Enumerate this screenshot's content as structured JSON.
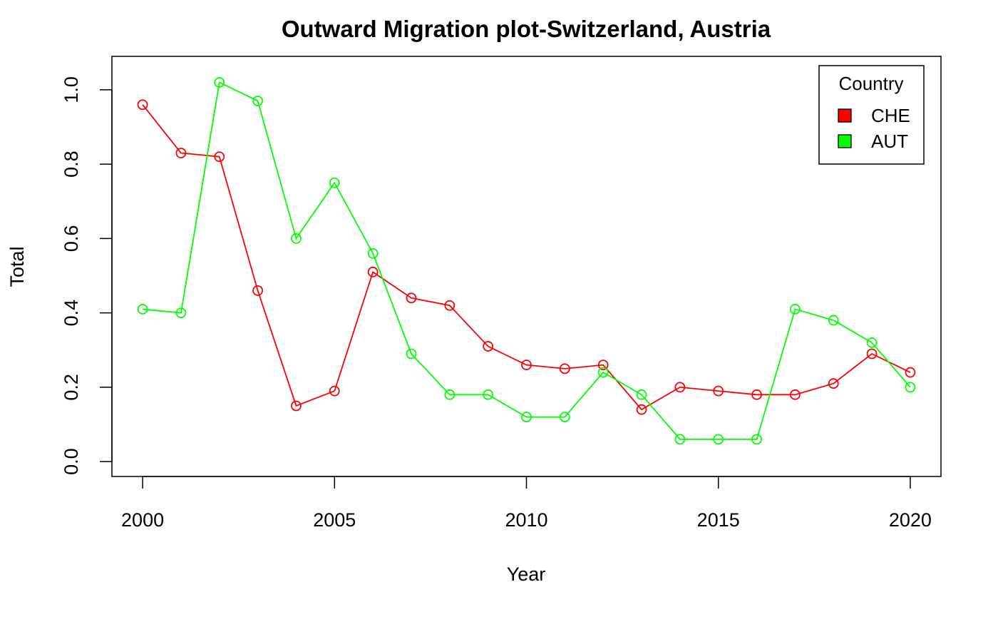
{
  "chart_data": {
    "type": "line",
    "title": "Outward Migration plot-Switzerland, Austria",
    "xlabel": "Year",
    "ylabel": "Total",
    "xlim": [
      1999.2,
      2020.8
    ],
    "ylim": [
      -0.04,
      1.09
    ],
    "x_ticks": [
      2000,
      2005,
      2010,
      2015,
      2020
    ],
    "y_ticks": [
      0.0,
      0.2,
      0.4,
      0.6,
      0.8,
      1.0
    ],
    "x_tick_labels": [
      "2000",
      "2005",
      "2010",
      "2015",
      "2020"
    ],
    "y_tick_labels": [
      "0.0",
      "0.2",
      "0.4",
      "0.6",
      "0.8",
      "1.0"
    ],
    "grid": false,
    "legend": {
      "position": "top-right",
      "title": "Country"
    },
    "x": [
      2000,
      2001,
      2002,
      2003,
      2004,
      2005,
      2006,
      2007,
      2008,
      2009,
      2010,
      2011,
      2012,
      2013,
      2014,
      2015,
      2016,
      2017,
      2018,
      2019,
      2020
    ],
    "series": [
      {
        "name": "CHE",
        "color": "#ff0000",
        "values": [
          0.96,
          0.83,
          0.82,
          0.46,
          0.15,
          0.19,
          0.51,
          0.44,
          0.42,
          0.31,
          0.26,
          0.25,
          0.26,
          0.14,
          0.2,
          0.19,
          0.18,
          0.18,
          0.21,
          0.29,
          0.24
        ]
      },
      {
        "name": "AUT",
        "color": "#00ff00",
        "values": [
          0.41,
          0.4,
          1.02,
          0.97,
          0.6,
          0.75,
          0.56,
          0.29,
          0.18,
          0.18,
          0.12,
          0.12,
          0.24,
          0.18,
          0.06,
          0.06,
          0.06,
          0.41,
          0.38,
          0.32,
          0.2
        ]
      }
    ]
  }
}
